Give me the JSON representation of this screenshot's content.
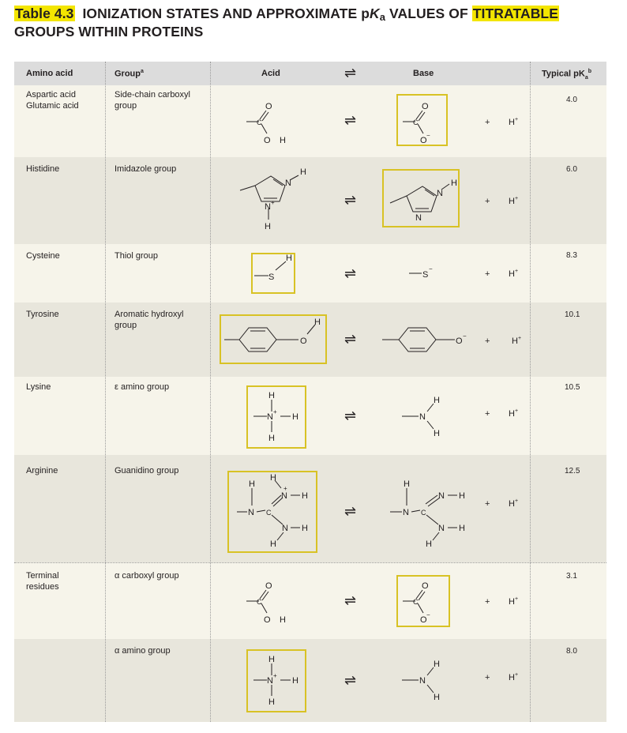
{
  "title": {
    "table_number": "Table 4.3",
    "text_before": "IONIZATION STATES AND APPROXIMATE p",
    "ka_italic": "K",
    "ka_sub": "a",
    "text_middle": " VALUES OF ",
    "highlight_word": "TITRATABLE",
    "line2": "GROUPS WITHIN PROTEINS"
  },
  "headers": {
    "amino_acid": "Amino acid",
    "group": "Group",
    "group_sup": "a",
    "acid": "Acid",
    "base": "Base",
    "typical": "Typical pK",
    "typical_sub": "a",
    "typical_sup": "b"
  },
  "rows": [
    {
      "amino_acid": "Aspartic acid\nGlutamic acid",
      "group": "Side-chain carboxyl\ngroup",
      "pka": "4.0"
    },
    {
      "amino_acid": "Histidine",
      "group": "Imidazole group",
      "pka": "6.0"
    },
    {
      "amino_acid": "Cysteine",
      "group": "Thiol group",
      "pka": "8.3"
    },
    {
      "amino_acid": "Tyrosine",
      "group": "Aromatic hydroxyl\ngroup",
      "pka": "10.1"
    },
    {
      "amino_acid": "Lysine",
      "group": "ε amino group",
      "pka": "10.5"
    },
    {
      "amino_acid": "Arginine",
      "group": "Guanidino group",
      "pka": "12.5"
    },
    {
      "amino_acid": "Terminal\nresidues",
      "group": "α carboxyl group",
      "pka": "3.1"
    },
    {
      "amino_acid": "",
      "group": "α amino group",
      "pka": "8.0"
    }
  ],
  "chem_labels": {
    "O": "O",
    "H": "H",
    "N": "N",
    "S": "S",
    "C": "C",
    "plus": "+",
    "neg": "−",
    "pos": "+",
    "equilibrium": "⇌"
  },
  "colors": {
    "highlight": "#f3e500",
    "box": "#d8c225",
    "header_bg": "#dcdcdc",
    "row_light": "#f6f4ea",
    "row_dark": "#e8e6dc"
  }
}
